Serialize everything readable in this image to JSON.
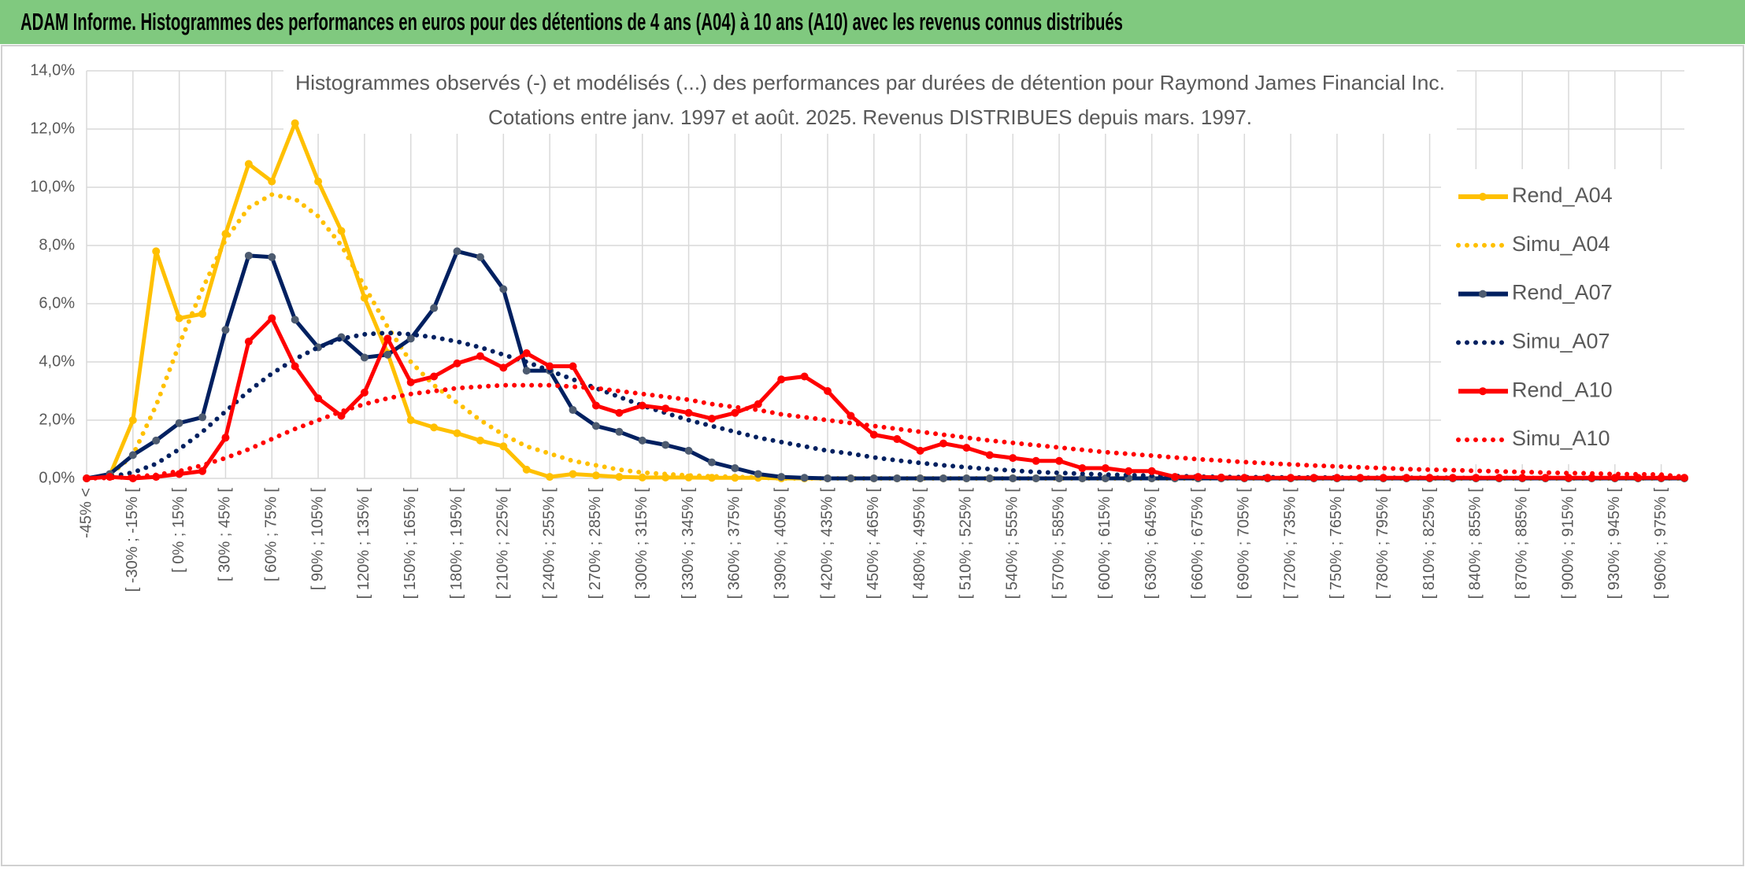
{
  "header": {
    "title": "ADAM Informe. Histogrammes des performances en euros pour des détentions de 4 ans (A04) à 10 ans (A10) avec les revenus connus distribués"
  },
  "chart_data": {
    "type": "line",
    "title": "Histogrammes observés (-) et modélisés (...) des performances par durées de détention pour Raymond James Financial Inc.",
    "subtitle": "Cotations entre janv. 1997 et août. 2025. Revenus DISTRIBUES depuis mars. 1997.",
    "categories": [
      "-45% <",
      null,
      "[ -30% ; -15% [",
      null,
      "[ 0% ; 15% [",
      null,
      "[ 30% ; 45% [",
      null,
      "[ 60% ; 75% [",
      null,
      "[ 90% ; 105% [",
      null,
      "[ 120% ; 135% [",
      null,
      "[ 150% ; 165% [",
      null,
      "[ 180% ; 195% [",
      null,
      "[ 210% ; 225% [",
      null,
      "[ 240% ; 255% [",
      null,
      "[ 270% ; 285% [",
      null,
      "[ 300% ; 315% [",
      null,
      "[ 330% ; 345% [",
      null,
      "[ 360% ; 375% [",
      null,
      "[ 390% ; 405% [",
      null,
      "[ 420% ; 435% [",
      null,
      "[ 450% ; 465% [",
      null,
      "[ 480% ; 495% [",
      null,
      "[ 510% ; 525% [",
      null,
      "[ 540% ; 555% [",
      null,
      "[ 570% ; 585% [",
      null,
      "[ 600% ; 615% [",
      null,
      "[ 630% ; 645% [",
      null,
      "[ 660% ; 675% [",
      null,
      "[ 690% ; 705% [",
      null,
      "[ 720% ; 735% [",
      null,
      "[ 750% ; 765% [",
      null,
      "[ 780% ; 795% [",
      null,
      "[ 810% ; 825% [",
      null,
      "[ 840% ; 855% [",
      null,
      "[ 870% ; 885% [",
      null,
      "[ 900% ; 915% [",
      null,
      "[ 930% ; 945% [",
      null,
      "[ 960% ; 975% [",
      null
    ],
    "ylim": [
      0,
      14
    ],
    "yticks": [
      {
        "value": 0,
        "label": "0,0%"
      },
      {
        "value": 2,
        "label": "2,0%"
      },
      {
        "value": 4,
        "label": "4,0%"
      },
      {
        "value": 6,
        "label": "6,0%"
      },
      {
        "value": 8,
        "label": "8,0%"
      },
      {
        "value": 10,
        "label": "10,0%"
      },
      {
        "value": 12,
        "label": "12,0%"
      },
      {
        "value": 14,
        "label": "14,0%"
      }
    ],
    "grid": true,
    "legend": "right",
    "series": [
      {
        "name": "Rend_A04",
        "color": "#ffc000",
        "style": "solid",
        "marker_color": "#ffc000",
        "values": [
          0,
          0.1,
          2.0,
          7.8,
          5.5,
          5.65,
          8.4,
          10.8,
          10.2,
          12.2,
          10.2,
          8.5,
          6.2,
          4.3,
          2.0,
          1.75,
          1.55,
          1.3,
          1.1,
          0.3,
          0.05,
          0.15,
          0.1,
          0.05,
          0.03,
          0.03,
          0.03,
          0.02,
          0.02,
          0.02,
          0,
          0,
          0,
          0,
          0,
          0,
          0,
          0,
          0,
          0,
          0,
          0,
          0,
          0,
          0,
          0,
          0,
          0,
          0,
          0,
          0,
          0,
          0,
          0,
          0,
          0,
          0,
          0,
          0,
          0,
          0,
          0,
          0,
          0,
          0,
          0,
          0,
          0,
          0,
          0
        ]
      },
      {
        "name": "Simu_A04",
        "color": "#ffc000",
        "style": "dotted",
        "values": [
          0,
          0.1,
          0.8,
          2.5,
          4.6,
          6.5,
          8.2,
          9.3,
          9.75,
          9.6,
          9.0,
          8.0,
          6.6,
          5.2,
          4.0,
          3.2,
          2.6,
          2.0,
          1.5,
          1.1,
          0.85,
          0.6,
          0.45,
          0.3,
          0.2,
          0.15,
          0.1,
          0.07,
          0.05,
          0.03,
          0,
          0,
          0,
          0,
          0,
          0,
          0,
          0,
          0,
          0,
          0,
          0,
          0,
          0,
          0,
          0,
          0,
          0,
          0,
          0,
          0,
          0,
          0,
          0,
          0,
          0,
          0,
          0,
          0,
          0,
          0,
          0,
          0,
          0,
          0,
          0,
          0,
          0,
          0,
          0
        ]
      },
      {
        "name": "Rend_A07",
        "color": "#002060",
        "style": "solid",
        "marker_color": "#4d5b70",
        "values": [
          0,
          0.15,
          0.8,
          1.3,
          1.9,
          2.1,
          5.1,
          7.65,
          7.6,
          5.45,
          4.5,
          4.85,
          4.15,
          4.25,
          4.8,
          5.85,
          7.8,
          7.6,
          6.5,
          3.7,
          3.7,
          2.35,
          1.8,
          1.6,
          1.3,
          1.15,
          0.95,
          0.55,
          0.35,
          0.15,
          0.05,
          0.02,
          0,
          0,
          0,
          0,
          0,
          0,
          0,
          0,
          0,
          0,
          0,
          0,
          0,
          0,
          0,
          0,
          0,
          0,
          0,
          0,
          0,
          0,
          0,
          0,
          0,
          0,
          0,
          0,
          0,
          0,
          0,
          0,
          0,
          0,
          0,
          0,
          0,
          0
        ]
      },
      {
        "name": "Simu_A07",
        "color": "#002060",
        "style": "dotted",
        "values": [
          0,
          0.05,
          0.2,
          0.5,
          1.0,
          1.6,
          2.3,
          3.0,
          3.6,
          4.1,
          4.5,
          4.8,
          4.95,
          5.0,
          4.95,
          4.85,
          4.7,
          4.5,
          4.25,
          4.0,
          3.7,
          3.4,
          3.1,
          2.8,
          2.5,
          2.25,
          2.0,
          1.8,
          1.6,
          1.4,
          1.25,
          1.1,
          0.95,
          0.85,
          0.72,
          0.62,
          0.53,
          0.45,
          0.38,
          0.32,
          0.27,
          0.22,
          0.19,
          0.16,
          0.13,
          0.11,
          0.09,
          0.08,
          0.06,
          0.05,
          0.04,
          0.04,
          0.03,
          0.03,
          0.03,
          0.02,
          0.02,
          0.02,
          0.02,
          0.02,
          0.01,
          0.01,
          0.01,
          0.01,
          0.01,
          0.01,
          0.01,
          0.01,
          0.01,
          0.01
        ]
      },
      {
        "name": "Rend_A10",
        "color": "#ff0000",
        "style": "solid",
        "marker_color": "#ff0000",
        "values": [
          0,
          0.05,
          0,
          0.05,
          0.15,
          0.25,
          1.4,
          4.7,
          5.5,
          3.85,
          2.75,
          2.15,
          2.95,
          4.8,
          3.3,
          3.5,
          3.95,
          4.2,
          3.8,
          4.3,
          3.85,
          3.85,
          2.5,
          2.25,
          2.5,
          2.4,
          2.25,
          2.05,
          2.25,
          2.55,
          3.4,
          3.5,
          3.0,
          2.15,
          1.5,
          1.35,
          0.95,
          1.2,
          1.05,
          0.8,
          0.7,
          0.6,
          0.6,
          0.35,
          0.35,
          0.25,
          0.25,
          0.05,
          0.05,
          0.03,
          0.02,
          0.02,
          0.02,
          0.02,
          0.02,
          0.02,
          0.02,
          0.02,
          0.02,
          0.02,
          0.02,
          0.02,
          0.02,
          0.02,
          0.02,
          0.02,
          0.02,
          0.02,
          0.02,
          0.02
        ]
      },
      {
        "name": "Simu_A10",
        "color": "#ff0000",
        "style": "dotted",
        "values": [
          0,
          0.02,
          0.05,
          0.12,
          0.25,
          0.45,
          0.7,
          1.0,
          1.35,
          1.7,
          2.0,
          2.3,
          2.55,
          2.75,
          2.9,
          3.0,
          3.1,
          3.15,
          3.2,
          3.2,
          3.2,
          3.15,
          3.1,
          3.0,
          2.9,
          2.8,
          2.7,
          2.55,
          2.45,
          2.35,
          2.2,
          2.1,
          2.0,
          1.9,
          1.8,
          1.7,
          1.6,
          1.5,
          1.4,
          1.3,
          1.22,
          1.14,
          1.06,
          0.98,
          0.9,
          0.84,
          0.78,
          0.72,
          0.66,
          0.61,
          0.56,
          0.52,
          0.48,
          0.44,
          0.41,
          0.38,
          0.35,
          0.32,
          0.3,
          0.28,
          0.26,
          0.24,
          0.22,
          0.2,
          0.18,
          0.17,
          0.15,
          0.14,
          0.13,
          0.05
        ]
      }
    ]
  }
}
